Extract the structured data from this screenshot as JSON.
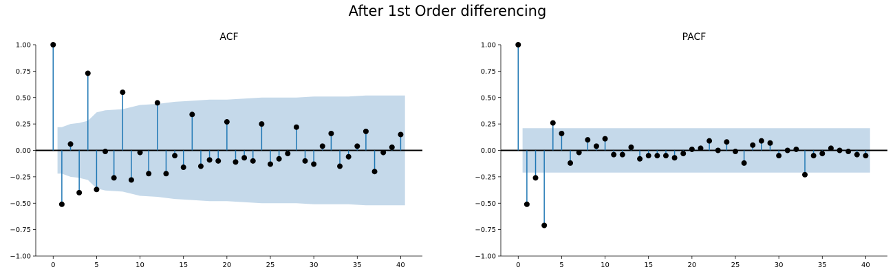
{
  "figure": {
    "title": "After 1st Order differencing"
  },
  "chart_data": [
    {
      "type": "stem",
      "title": "ACF",
      "xlim": [
        -2,
        42.5
      ],
      "ylim": [
        -1.0,
        1.0
      ],
      "xticks": [
        0,
        5,
        10,
        15,
        20,
        25,
        30,
        35,
        40
      ],
      "yticks": [
        -1.0,
        -0.75,
        -0.5,
        -0.25,
        0.0,
        0.25,
        0.5,
        0.75,
        1.0
      ],
      "ytick_labels": [
        "−1.00",
        "−0.75",
        "−0.50",
        "−0.25",
        "0.00",
        "0.25",
        "0.50",
        "0.75",
        "1.00"
      ],
      "lags": [
        0,
        1,
        2,
        3,
        4,
        5,
        6,
        7,
        8,
        9,
        10,
        11,
        12,
        13,
        14,
        15,
        16,
        17,
        18,
        19,
        20,
        21,
        22,
        23,
        24,
        25,
        26,
        27,
        28,
        29,
        30,
        31,
        32,
        33,
        34,
        35,
        36,
        37,
        38,
        39,
        40
      ],
      "values": [
        1.0,
        -0.51,
        0.06,
        -0.4,
        0.73,
        -0.37,
        -0.01,
        -0.26,
        0.55,
        -0.28,
        -0.02,
        -0.22,
        0.45,
        -0.22,
        -0.05,
        -0.16,
        0.34,
        -0.15,
        -0.09,
        -0.1,
        0.27,
        -0.11,
        -0.07,
        -0.1,
        0.25,
        -0.13,
        -0.08,
        -0.03,
        0.22,
        -0.1,
        -0.13,
        0.04,
        0.16,
        -0.15,
        -0.06,
        0.04,
        0.18,
        -0.2,
        -0.02,
        0.03,
        0.15
      ],
      "confidence_band": {
        "lags": [
          0.5,
          1,
          2,
          3,
          4,
          5,
          6,
          8,
          10,
          12,
          14,
          16,
          18,
          20,
          22,
          24,
          26,
          28,
          30,
          32,
          34,
          36,
          38,
          40.5
        ],
        "upper": [
          0.22,
          0.22,
          0.25,
          0.26,
          0.28,
          0.36,
          0.38,
          0.39,
          0.43,
          0.44,
          0.46,
          0.47,
          0.48,
          0.48,
          0.49,
          0.5,
          0.5,
          0.5,
          0.51,
          0.51,
          0.51,
          0.52,
          0.52,
          0.52
        ]
      },
      "colors": {
        "stem": "#1f77b4",
        "marker": "#000000",
        "band": "#c5d9ea"
      }
    },
    {
      "type": "stem",
      "title": "PACF",
      "xlim": [
        -2,
        42.5
      ],
      "ylim": [
        -1.0,
        1.0
      ],
      "xticks": [
        0,
        5,
        10,
        15,
        20,
        25,
        30,
        35,
        40
      ],
      "yticks": [
        -1.0,
        -0.75,
        -0.5,
        -0.25,
        0.0,
        0.25,
        0.5,
        0.75,
        1.0
      ],
      "ytick_labels": [
        "−1.00",
        "−0.75",
        "−0.50",
        "−0.25",
        "0.00",
        "0.25",
        "0.50",
        "0.75",
        "1.00"
      ],
      "lags": [
        0,
        1,
        2,
        3,
        4,
        5,
        6,
        7,
        8,
        9,
        10,
        11,
        12,
        13,
        14,
        15,
        16,
        17,
        18,
        19,
        20,
        21,
        22,
        23,
        24,
        25,
        26,
        27,
        28,
        29,
        30,
        31,
        32,
        33,
        34,
        35,
        36,
        37,
        38,
        39,
        40
      ],
      "values": [
        1.0,
        -0.51,
        -0.26,
        -0.71,
        0.26,
        0.16,
        -0.12,
        -0.02,
        0.1,
        0.04,
        0.11,
        -0.04,
        -0.04,
        0.03,
        -0.08,
        -0.05,
        -0.05,
        -0.05,
        -0.07,
        -0.03,
        0.01,
        0.02,
        0.09,
        0.0,
        0.08,
        -0.01,
        -0.12,
        0.05,
        0.09,
        0.07,
        -0.05,
        0.0,
        0.01,
        -0.23,
        -0.05,
        -0.03,
        0.02,
        0.0,
        -0.01,
        -0.04,
        -0.05
      ],
      "confidence_band": {
        "lags": [
          0.5,
          40.5
        ],
        "upper": [
          0.21,
          0.21
        ]
      },
      "colors": {
        "stem": "#1f77b4",
        "marker": "#000000",
        "band": "#c5d9ea"
      }
    }
  ]
}
